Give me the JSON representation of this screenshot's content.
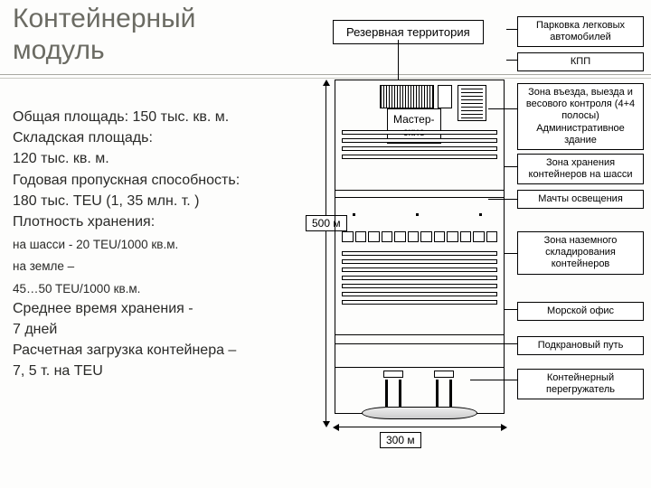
{
  "title": "Контейнерный\nмодуль",
  "specs": {
    "line1": "Общая площадь: 150 тыс. кв. м.",
    "line2": "Складская площадь:",
    "line3": "120 тыс. кв. м.",
    "line4": "Годовая пропускная способность:",
    "line5": "180 тыс. TEU (1, 35 млн. т. )",
    "line6": "Плотность хранения:",
    "sub1": "на шасси -  20 TEU/1000 кв.м.",
    "sub2": "на земле –",
    "sub3": "45…50 TEU/1000 кв.м.",
    "line7": "Среднее время хранения  -",
    "line8": "7 дней",
    "line9": "Расчетная загрузка  контейнера –",
    "line10": "7, 5 т. на TEU"
  },
  "labels": {
    "reserve": "Резервная территория",
    "workshop": "Мастер-\nские",
    "dim500": "500 м",
    "dim300": "300 м"
  },
  "legend": {
    "l1": "Парковка легковых автомобилей",
    "l2": "КПП",
    "l3": "Зона въезда, выезда и весового контроля (4+4 полосы) Административное здание",
    "l4": "Зона хранения контейнеров на шасси",
    "l5": "Мачты освещения",
    "l6": "Зона наземного складирования контейнеров",
    "l7": "Морской офис",
    "l8": "Подкрановый путь",
    "l9": "Контейнерный перегружатель"
  },
  "legend_tops": {
    "l1": 18,
    "l2": 58,
    "l3": 92,
    "l4": 170,
    "l5": 210,
    "l6": 256,
    "l7": 334,
    "l8": 372,
    "l9": 408
  },
  "colors": {
    "bg": "#fdfdfc",
    "title": "#6b6b63",
    "text": "#2a2a28",
    "line": "#000000",
    "rule": "#a9a9a2"
  },
  "diagram": {
    "type": "schematic-plan",
    "width_m": 300,
    "height_m": 500,
    "mid_bar_rows": 4,
    "lower_bar_rows": 7,
    "small_cell_count": 12,
    "crane_count": 2
  },
  "fonts": {
    "title_pt": 30,
    "body_pt": 16,
    "sub_pt": 13.5,
    "legend_pt": 11,
    "box_pt": 12
  }
}
